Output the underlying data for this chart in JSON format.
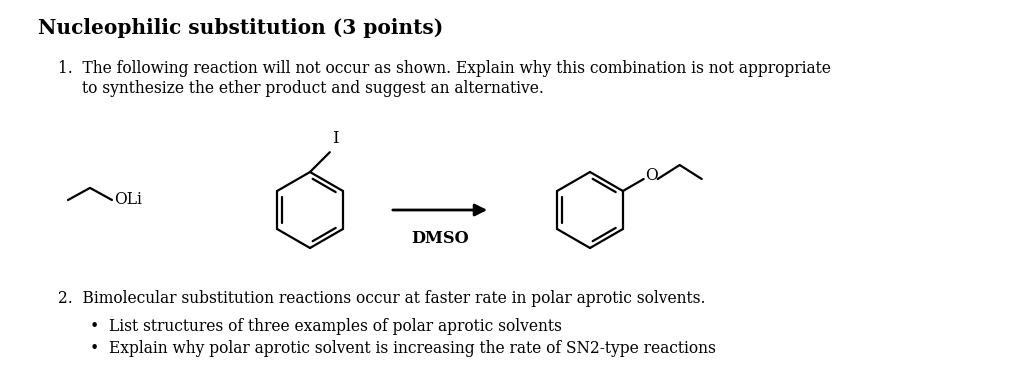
{
  "title": "Nucleophilic substitution (3 points)",
  "title_fontsize": 14.5,
  "item1_line1": "The following reaction will not occur as shown. Explain why this combination is not appropriate",
  "item1_line2": "to synthesize the ether product and suggest an alternative.",
  "item2_text": "Bimolecular substitution reactions occur at faster rate in polar aprotic solvents.",
  "bullet1": "List structures of three examples of polar aprotic solvents",
  "bullet2": "Explain why polar aprotic solvent is increasing the rate of SN2-type reactions",
  "body_fontsize": 11.2,
  "background_color": "#ffffff",
  "text_color": "#000000",
  "dmso_label": "DMSO"
}
